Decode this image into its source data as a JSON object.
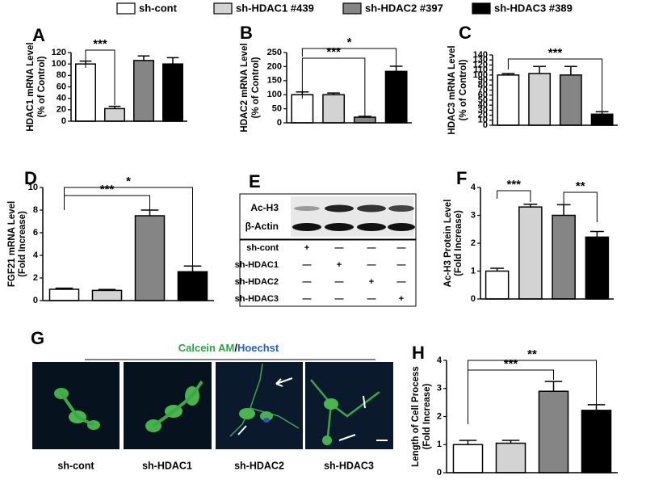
{
  "legend": [
    {
      "name": "sh-cont",
      "color": "#ffffff"
    },
    {
      "name": "sh-HDAC1 #439",
      "color": "#d3d3d3"
    },
    {
      "name": "sh-HDAC2 #397",
      "color": "#858585"
    },
    {
      "name": "sh-HDAC3 #389",
      "color": "#000000"
    }
  ],
  "chart_data": [
    {
      "type": "bar",
      "panel": "A",
      "ylabel": [
        "HDAC1 mRNA Level",
        "(% of Control)"
      ],
      "values": [
        100,
        22,
        106,
        100
      ],
      "errors": [
        5,
        4,
        8,
        11
      ],
      "ylim": [
        0,
        120
      ],
      "yticks": [
        0,
        20,
        40,
        60,
        80,
        100,
        120
      ],
      "annotations": [
        "***"
      ]
    },
    {
      "type": "bar",
      "panel": "B",
      "ylabel": [
        "HDAC2 mRNA Level",
        "(% of Control)"
      ],
      "values": [
        100,
        100,
        20,
        183
      ],
      "errors": [
        10,
        6,
        3,
        18
      ],
      "ylim": [
        0,
        250
      ],
      "yticks": [
        0,
        50,
        100,
        150,
        200,
        250
      ],
      "annotations": [
        "***",
        "*"
      ]
    },
    {
      "type": "bar",
      "panel": "C",
      "ylabel": [
        "HDAC3 mRNA Level",
        "(% of Control)"
      ],
      "values": [
        100,
        103,
        100,
        22
      ],
      "errors": [
        3,
        14,
        17,
        5
      ],
      "ylim": [
        0,
        140
      ],
      "yticks": [
        0,
        10,
        20,
        30,
        40,
        50,
        60,
        70,
        80,
        90,
        100,
        110,
        120,
        130,
        140
      ],
      "annotations": [
        "***"
      ]
    },
    {
      "type": "bar",
      "panel": "D",
      "ylabel": [
        "FGF21 mRNA Level",
        "(Fold Increase)"
      ],
      "values": [
        1.0,
        0.9,
        7.5,
        2.55
      ],
      "errors": [
        0.1,
        0.08,
        0.5,
        0.5
      ],
      "ylim": [
        0,
        10
      ],
      "yticks": [
        0,
        2,
        4,
        6,
        8,
        10
      ],
      "annotations": [
        "***",
        "*"
      ]
    },
    {
      "type": "bar",
      "panel": "F",
      "ylabel": [
        "Ac-H3 Protein Level",
        "(Fold Increase)"
      ],
      "values": [
        1.0,
        3.3,
        3.0,
        2.22
      ],
      "errors": [
        0.1,
        0.1,
        0.38,
        0.2
      ],
      "ylim": [
        0,
        4
      ],
      "yticks": [
        0,
        1,
        2,
        3,
        4
      ],
      "annotations": [
        "***",
        "**"
      ]
    },
    {
      "type": "bar",
      "panel": "H",
      "ylabel": [
        "Length of Cell Process",
        "(Fold Increase)"
      ],
      "values": [
        1.0,
        1.05,
        2.9,
        2.22
      ],
      "errors": [
        0.15,
        0.1,
        0.35,
        0.2
      ],
      "ylim": [
        0,
        4
      ],
      "yticks": [
        0,
        1,
        2,
        3,
        4
      ],
      "annotations": [
        "***",
        "**"
      ]
    }
  ],
  "blot": {
    "panel": "E",
    "bands": [
      "Ac-H3",
      "β-Actin"
    ],
    "rows": [
      {
        "label": "sh-cont",
        "marks": [
          "+",
          "—",
          "—",
          "—"
        ]
      },
      {
        "label": "sh-HDAC1",
        "marks": [
          "—",
          "+",
          "—",
          "—"
        ]
      },
      {
        "label": "sh-HDAC2",
        "marks": [
          "—",
          "—",
          "+",
          "—"
        ]
      },
      {
        "label": "sh-HDAC3",
        "marks": [
          "—",
          "—",
          "—",
          "+"
        ]
      }
    ]
  },
  "images": {
    "panel": "G",
    "title": [
      "Calcein AM",
      "/",
      "Hoechst"
    ],
    "captions": [
      "sh-cont",
      "sh-HDAC1",
      "sh-HDAC2",
      "sh-HDAC3"
    ]
  }
}
